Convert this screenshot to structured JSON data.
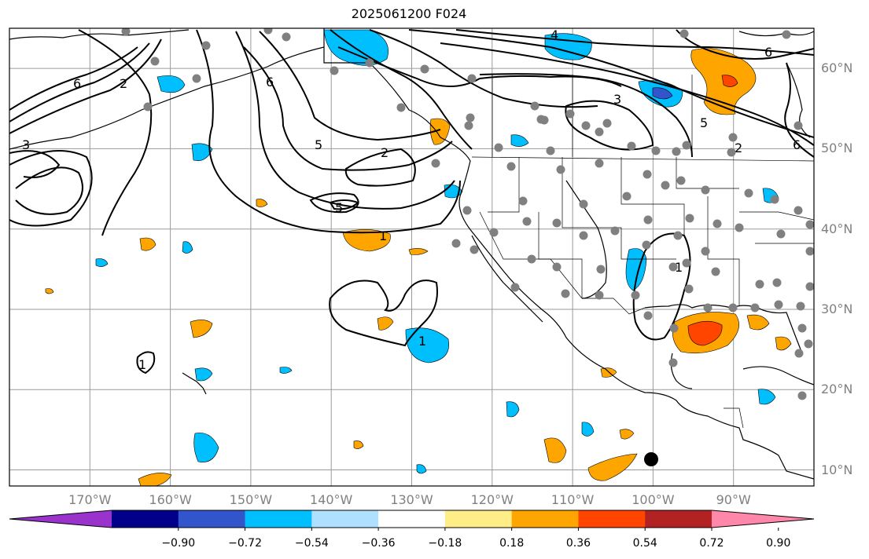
{
  "title": "2025061200 F024",
  "map": {
    "lat_labels": [
      {
        "text": "60°N",
        "lat": 60
      },
      {
        "text": "50°N",
        "lat": 50
      },
      {
        "text": "40°N",
        "lat": 40
      },
      {
        "text": "30°N",
        "lat": 30
      },
      {
        "text": "20°N",
        "lat": 20
      },
      {
        "text": "10°N",
        "lat": 10
      }
    ],
    "lon_labels": [
      {
        "text": "170°W",
        "lon": -170
      },
      {
        "text": "160°W",
        "lon": -160
      },
      {
        "text": "150°W",
        "lon": -150
      },
      {
        "text": "140°W",
        "lon": -140
      },
      {
        "text": "130°W",
        "lon": -130
      },
      {
        "text": "120°W",
        "lon": -120
      },
      {
        "text": "110°W",
        "lon": -110
      },
      {
        "text": "100°W",
        "lon": -100
      },
      {
        "text": "90°W",
        "lon": -90
      }
    ],
    "extent": {
      "lon_min": -180,
      "lon_max": -80,
      "lat_min": 8,
      "lat_max": 65
    },
    "contour_labels": [
      "6",
      "4",
      "2",
      "5",
      "3",
      "1"
    ]
  },
  "colorbar": {
    "colors": [
      "#9933cc",
      "#00008b",
      "#3355cc",
      "#00bfff",
      "#b0e0ff",
      "#ffffff",
      "#ffee88",
      "#ffa500",
      "#ff4500",
      "#b22222",
      "#ff88aa"
    ],
    "ticks": [
      "−0.90",
      "−0.72",
      "−0.54",
      "−0.36",
      "−0.18",
      "0.18",
      "0.36",
      "0.54",
      "0.72",
      "0.90"
    ]
  }
}
